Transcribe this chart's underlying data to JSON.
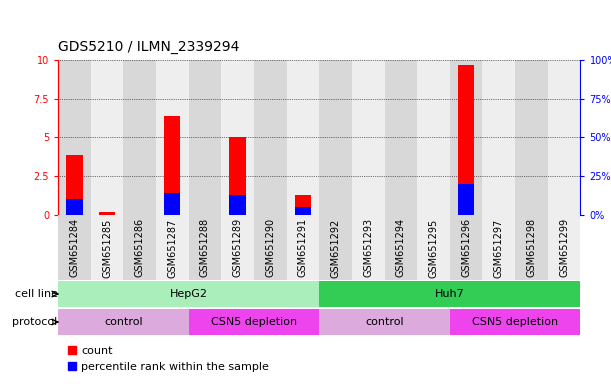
{
  "title": "GDS5210 / ILMN_2339294",
  "samples": [
    "GSM651284",
    "GSM651285",
    "GSM651286",
    "GSM651287",
    "GSM651288",
    "GSM651289",
    "GSM651290",
    "GSM651291",
    "GSM651292",
    "GSM651293",
    "GSM651294",
    "GSM651295",
    "GSM651296",
    "GSM651297",
    "GSM651298",
    "GSM651299"
  ],
  "counts": [
    3.9,
    0.2,
    0.0,
    6.4,
    0.0,
    5.0,
    0.0,
    1.3,
    0.0,
    0.0,
    0.0,
    0.0,
    9.7,
    0.0,
    0.0,
    0.0
  ],
  "percentile_ranks": [
    10.0,
    0.0,
    0.0,
    14.0,
    0.0,
    13.0,
    0.0,
    5.0,
    0.0,
    0.0,
    0.0,
    0.0,
    20.0,
    0.0,
    0.0,
    0.0
  ],
  "bar_color_red": "#ff0000",
  "bar_color_blue": "#0000ff",
  "ylim_left": [
    0,
    10
  ],
  "ylim_right": [
    0,
    100
  ],
  "yticks_left": [
    0,
    2.5,
    5.0,
    7.5,
    10
  ],
  "yticks_right": [
    0,
    25,
    50,
    75,
    100
  ],
  "ytick_labels_left": [
    "0",
    "2.5",
    "5",
    "7.5",
    "10"
  ],
  "ytick_labels_right": [
    "0%",
    "25%",
    "50%",
    "75%",
    "100%"
  ],
  "grid_color": "#000000",
  "cell_line_label": "cell line",
  "protocol_label": "protocol",
  "cell_line_HepG2": {
    "label": "HepG2",
    "start": 0,
    "end": 7,
    "color": "#aaeebb"
  },
  "cell_line_Huh7": {
    "label": "Huh7",
    "start": 8,
    "end": 15,
    "color": "#33cc55"
  },
  "protocol_control1": {
    "label": "control",
    "start": 0,
    "end": 3,
    "color": "#ddaadd"
  },
  "protocol_csn5_1": {
    "label": "CSN5 depletion",
    "start": 4,
    "end": 7,
    "color": "#ee44ee"
  },
  "protocol_control2": {
    "label": "control",
    "start": 8,
    "end": 11,
    "color": "#ddaadd"
  },
  "protocol_csn5_2": {
    "label": "CSN5 depletion",
    "start": 12,
    "end": 15,
    "color": "#ee44ee"
  },
  "legend_count_label": "count",
  "legend_pct_label": "percentile rank within the sample",
  "bg_color": "#ffffff",
  "bar_width": 0.5,
  "title_fontsize": 10,
  "tick_fontsize": 7,
  "label_fontsize": 8,
  "col_bg_even": "#d8d8d8",
  "col_bg_odd": "#eeeeee"
}
